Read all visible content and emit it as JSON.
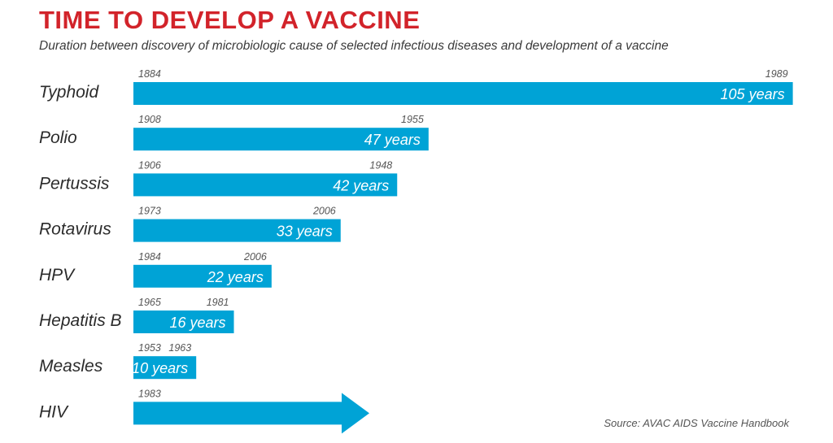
{
  "title": "TIME TO DEVELOP A VACCINE",
  "subtitle": "Duration between discovery of microbiologic cause of selected infectious diseases and development of a vaccine",
  "source": "Source: AVAC AIDS Vaccine Handbook",
  "colors": {
    "title": "#d2232a",
    "bar": "#00a3d6",
    "bar_text": "#ffffff"
  },
  "chart_data": {
    "type": "bar",
    "orientation": "horizontal",
    "title": "TIME TO DEVELOP A VACCINE",
    "subtitle": "Duration between discovery of microbiologic cause of selected infectious diseases and development of a vaccine",
    "categories": [
      "Typhoid",
      "Polio",
      "Pertussis",
      "Rotavirus",
      "HPV",
      "Hepatitis B",
      "Measles",
      "HIV"
    ],
    "series": [
      {
        "values": [
          105,
          47,
          42,
          33,
          22,
          16,
          10,
          null
        ]
      }
    ],
    "bars": [
      {
        "name": "Typhoid",
        "start": "1884",
        "end": "1989",
        "duration": 105,
        "label": "105 years"
      },
      {
        "name": "Polio",
        "start": "1908",
        "end": "1955",
        "duration": 47,
        "label": "47 years"
      },
      {
        "name": "Pertussis",
        "start": "1906",
        "end": "1948",
        "duration": 42,
        "label": "42 years"
      },
      {
        "name": "Rotavirus",
        "start": "1973",
        "end": "2006",
        "duration": 33,
        "label": "33 years"
      },
      {
        "name": "HPV",
        "start": "1984",
        "end": "2006",
        "duration": 22,
        "label": "22 years"
      },
      {
        "name": "Hepatitis B",
        "start": "1965",
        "end": "1981",
        "duration": 16,
        "label": "16 years"
      },
      {
        "name": "Measles",
        "start": "1953",
        "end": "1963",
        "duration": 10,
        "label": "10 years"
      },
      {
        "name": "HIV",
        "start": "1983",
        "end": "",
        "duration": null,
        "label": "",
        "ongoing": true
      }
    ],
    "xlim": [
      0,
      105
    ],
    "grid": false,
    "legend": "none",
    "source": "Source: AVAC AIDS Vaccine Handbook"
  }
}
